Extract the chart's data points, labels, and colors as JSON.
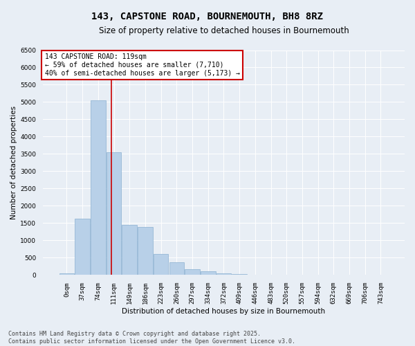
{
  "title": "143, CAPSTONE ROAD, BOURNEMOUTH, BH8 8RZ",
  "subtitle": "Size of property relative to detached houses in Bournemouth",
  "xlabel": "Distribution of detached houses by size in Bournemouth",
  "ylabel": "Number of detached properties",
  "footer_line1": "Contains HM Land Registry data © Crown copyright and database right 2025.",
  "footer_line2": "Contains public sector information licensed under the Open Government Licence v3.0.",
  "bar_labels": [
    "0sqm",
    "37sqm",
    "74sqm",
    "111sqm",
    "149sqm",
    "186sqm",
    "223sqm",
    "260sqm",
    "297sqm",
    "334sqm",
    "372sqm",
    "409sqm",
    "446sqm",
    "483sqm",
    "520sqm",
    "557sqm",
    "594sqm",
    "632sqm",
    "669sqm",
    "706sqm",
    "743sqm"
  ],
  "bar_values": [
    50,
    1620,
    5050,
    3550,
    1450,
    1380,
    600,
    370,
    175,
    100,
    55,
    25,
    12,
    8,
    4,
    3,
    2,
    1,
    1,
    1,
    1
  ],
  "bar_color": "#b8d0e8",
  "bar_edge_color": "#8ab0d0",
  "ylim": [
    0,
    6500
  ],
  "yticks": [
    0,
    500,
    1000,
    1500,
    2000,
    2500,
    3000,
    3500,
    4000,
    4500,
    5000,
    5500,
    6000,
    6500
  ],
  "vline_x_index": 2.85,
  "vline_color": "#cc0000",
  "annotation_title": "143 CAPSTONE ROAD: 119sqm",
  "annotation_line2": "← 59% of detached houses are smaller (7,710)",
  "annotation_line3": "40% of semi-detached houses are larger (5,173) →",
  "annotation_box_color": "#ffffff",
  "annotation_box_edge_color": "#cc0000",
  "bg_color": "#e8eef5",
  "grid_color": "#ffffff",
  "title_fontsize": 10,
  "subtitle_fontsize": 8.5,
  "axis_label_fontsize": 7.5,
  "tick_fontsize": 6.5,
  "annotation_fontsize": 7,
  "footer_fontsize": 6
}
